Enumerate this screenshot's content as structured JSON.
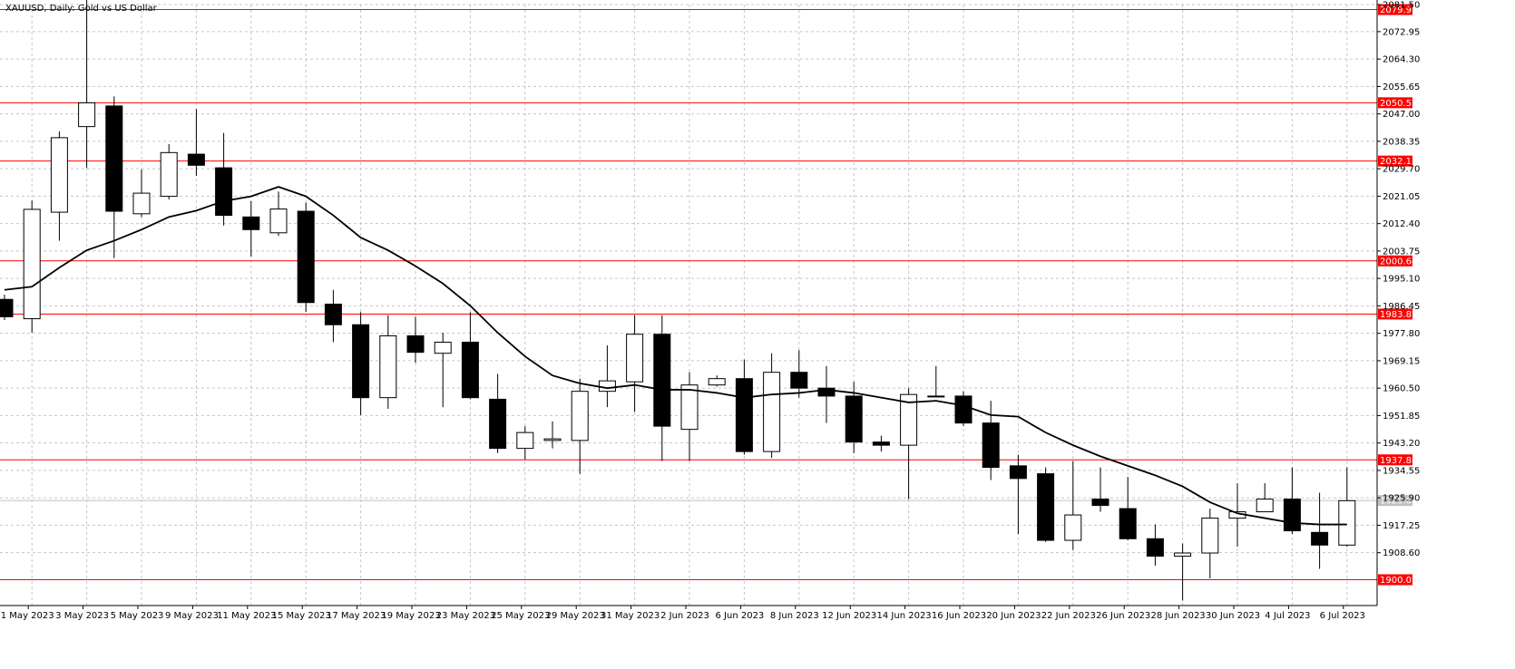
{
  "chart_data": {
    "type": "candlestick",
    "title": "XAUUSD, Daily:  Gold vs US Dollar",
    "symbol": "XAUUSD",
    "timeframe": "Daily",
    "description": "Gold vs US Dollar",
    "ylim": [
      1896.5,
      2081.5
    ],
    "grid": true,
    "colors": {
      "bull_body": "#ffffff",
      "bear_body": "#000000",
      "candle_outline": "#000000",
      "moving_average": "#000000",
      "level_line": "#ff0000",
      "level_label_bg": "#ff0000",
      "level_label_text": "#ffffff",
      "current_price_bg": "#c0c0c0",
      "grid": "#c0c8d0",
      "axis_text": "#000000"
    },
    "y_ticks": [
      "2081.50",
      "2072.95",
      "2064.30",
      "2055.65",
      "2047.00",
      "2038.35",
      "2029.70",
      "2021.05",
      "2012.40",
      "2003.75",
      "1995.10",
      "1986.45",
      "1977.80",
      "1969.15",
      "1960.50",
      "1951.85",
      "1943.20",
      "1934.55",
      "1925.90",
      "1917.25",
      "1908.60"
    ],
    "x_ticks": [
      "1 May 2023",
      "3 May 2023",
      "5 May 2023",
      "9 May 2023",
      "11 May 2023",
      "15 May 2023",
      "17 May 2023",
      "19 May 2023",
      "23 May 2023",
      "25 May 2023",
      "29 May 2023",
      "31 May 2023",
      "2 Jun 2023",
      "6 Jun 2023",
      "8 Jun 2023",
      "12 Jun 2023",
      "14 Jun 2023",
      "16 Jun 2023",
      "20 Jun 2023",
      "22 Jun 2023",
      "26 Jun 2023",
      "28 Jun 2023",
      "30 Jun 2023",
      "4 Jul 2023",
      "6 Jul 2023"
    ],
    "levels": [
      {
        "label": "2079.91",
        "value": 2079.91
      },
      {
        "label": "2050.52",
        "value": 2050.52
      },
      {
        "label": "2032.13",
        "value": 2032.13
      },
      {
        "label": "2000.64",
        "value": 2000.64
      },
      {
        "label": "1983.87",
        "value": 1983.87
      },
      {
        "label": "1937.88",
        "value": 1937.88
      },
      {
        "label": "1900.07",
        "value": 1900.07
      }
    ],
    "current_price": {
      "label": "1925.06",
      "value": 1925.06
    },
    "candles": [
      {
        "date": "28 Apr 2023",
        "open": 1988.5,
        "high": 1990.0,
        "low": 1982.0,
        "close": 1983.0
      },
      {
        "date": "1 May 2023",
        "open": 1982.4,
        "high": 2019.7,
        "low": 1978.0,
        "close": 2016.9
      },
      {
        "date": "2 May 2023",
        "open": 2016.0,
        "high": 2041.5,
        "low": 2007.0,
        "close": 2039.5
      },
      {
        "date": "3 May 2023",
        "open": 2043.0,
        "high": 2093.0,
        "low": 2030.0,
        "close": 2050.5
      },
      {
        "date": "4 May 2023",
        "open": 2049.5,
        "high": 2052.5,
        "low": 2001.5,
        "close": 2016.3
      },
      {
        "date": "5 May 2023",
        "open": 2015.5,
        "high": 2029.5,
        "low": 2014.5,
        "close": 2022.0
      },
      {
        "date": "8 May 2023",
        "open": 2021.0,
        "high": 2037.5,
        "low": 2020.0,
        "close": 2034.8
      },
      {
        "date": "9 May 2023",
        "open": 2034.3,
        "high": 2048.5,
        "low": 2027.5,
        "close": 2030.8
      },
      {
        "date": "10 May 2023",
        "open": 2030.0,
        "high": 2041.0,
        "low": 2011.8,
        "close": 2015.0
      },
      {
        "date": "11 May 2023",
        "open": 2014.5,
        "high": 2019.5,
        "low": 2002.0,
        "close": 2010.5
      },
      {
        "date": "12 May 2023",
        "open": 2009.5,
        "high": 2022.5,
        "low": 2008.5,
        "close": 2017.0
      },
      {
        "date": "15 May 2023",
        "open": 2016.3,
        "high": 2019.0,
        "low": 1984.5,
        "close": 1987.5
      },
      {
        "date": "16 May 2023",
        "open": 1987.0,
        "high": 1991.5,
        "low": 1975.0,
        "close": 1980.5
      },
      {
        "date": "17 May 2023",
        "open": 1980.5,
        "high": 1984.5,
        "low": 1952.0,
        "close": 1957.5
      },
      {
        "date": "18 May 2023",
        "open": 1957.5,
        "high": 1983.5,
        "low": 1954.0,
        "close": 1977.0
      },
      {
        "date": "19 May 2023",
        "open": 1977.0,
        "high": 1983.0,
        "low": 1968.5,
        "close": 1971.8
      },
      {
        "date": "22 May 2023",
        "open": 1971.5,
        "high": 1978.0,
        "low": 1954.5,
        "close": 1975.0
      },
      {
        "date": "23 May 2023",
        "open": 1975.0,
        "high": 1984.5,
        "low": 1957.0,
        "close": 1957.5
      },
      {
        "date": "24 May 2023",
        "open": 1957.0,
        "high": 1965.0,
        "low": 1940.0,
        "close": 1941.5
      },
      {
        "date": "25 May 2023",
        "open": 1941.5,
        "high": 1948.5,
        "low": 1938.0,
        "close": 1946.5
      },
      {
        "date": "26 May 2023",
        "open": 1944.0,
        "high": 1950.0,
        "low": 1941.5,
        "close": 1944.5
      },
      {
        "date": "29 May 2023",
        "open": 1944.0,
        "high": 1963.5,
        "low": 1933.5,
        "close": 1959.5
      },
      {
        "date": "30 May 2023",
        "open": 1959.5,
        "high": 1974.0,
        "low": 1954.5,
        "close": 1962.8
      },
      {
        "date": "31 May 2023",
        "open": 1962.5,
        "high": 1983.5,
        "low": 1953.0,
        "close": 1977.5
      },
      {
        "date": "1 Jun 2023",
        "open": 1977.5,
        "high": 1983.5,
        "low": 1937.5,
        "close": 1948.5
      },
      {
        "date": "2 Jun 2023",
        "open": 1947.5,
        "high": 1965.5,
        "low": 1937.5,
        "close": 1961.5
      },
      {
        "date": "5 Jun 2023",
        "open": 1961.5,
        "high": 1964.5,
        "low": 1961.0,
        "close": 1963.5
      },
      {
        "date": "6 Jun 2023",
        "open": 1963.5,
        "high": 1969.5,
        "low": 1939.5,
        "close": 1940.5
      },
      {
        "date": "7 Jun 2023",
        "open": 1940.5,
        "high": 1971.5,
        "low": 1938.5,
        "close": 1965.5
      },
      {
        "date": "8 Jun 2023",
        "open": 1965.5,
        "high": 1972.5,
        "low": 1957.5,
        "close": 1960.5
      },
      {
        "date": "9 Jun 2023",
        "open": 1960.5,
        "high": 1967.5,
        "low": 1949.5,
        "close": 1958.0
      },
      {
        "date": "12 Jun 2023",
        "open": 1958.0,
        "high": 1962.5,
        "low": 1940.0,
        "close": 1943.5
      },
      {
        "date": "13 Jun 2023",
        "open": 1943.5,
        "high": 1945.5,
        "low": 1940.5,
        "close": 1942.5
      },
      {
        "date": "14 Jun 2023",
        "open": 1942.5,
        "high": 1960.5,
        "low": 1925.5,
        "close": 1958.5
      },
      {
        "date": "15 Jun 2023",
        "open": 1958.0,
        "high": 1967.5,
        "low": 1958.0,
        "close": 1958.0
      },
      {
        "date": "16 Jun 2023",
        "open": 1958.0,
        "high": 1959.5,
        "low": 1948.5,
        "close": 1949.5
      },
      {
        "date": "19 Jun 2023",
        "open": 1949.5,
        "high": 1956.5,
        "low": 1931.5,
        "close": 1935.5
      },
      {
        "date": "20 Jun 2023",
        "open": 1936.0,
        "high": 1939.5,
        "low": 1914.5,
        "close": 1932.0
      },
      {
        "date": "21 Jun 2023",
        "open": 1933.5,
        "high": 1935.5,
        "low": 1912.0,
        "close": 1912.5
      },
      {
        "date": "22 Jun 2023",
        "open": 1912.5,
        "high": 1937.5,
        "low": 1909.5,
        "close": 1920.5
      },
      {
        "date": "23 Jun 2023",
        "open": 1925.5,
        "high": 1935.5,
        "low": 1921.5,
        "close": 1923.5
      },
      {
        "date": "26 Jun 2023",
        "open": 1922.5,
        "high": 1932.5,
        "low": 1912.5,
        "close": 1913.0
      },
      {
        "date": "27 Jun 2023",
        "open": 1913.0,
        "high": 1917.5,
        "low": 1904.5,
        "close": 1907.5
      },
      {
        "date": "28 Jun 2023",
        "open": 1907.5,
        "high": 1911.5,
        "low": 1893.5,
        "close": 1908.5
      },
      {
        "date": "29 Jun 2023",
        "open": 1908.5,
        "high": 1922.5,
        "low": 1900.5,
        "close": 1919.5
      },
      {
        "date": "30 Jun 2023",
        "open": 1919.5,
        "high": 1930.5,
        "low": 1910.5,
        "close": 1921.5
      },
      {
        "date": "3 Jul 2023",
        "open": 1921.5,
        "high": 1930.5,
        "low": 1921.5,
        "close": 1925.5
      },
      {
        "date": "4 Jul 2023",
        "open": 1925.5,
        "high": 1935.5,
        "low": 1914.5,
        "close": 1915.5
      },
      {
        "date": "5 Jul 2023",
        "open": 1915.0,
        "high": 1927.5,
        "low": 1903.5,
        "close": 1911.0
      },
      {
        "date": "6 Jul 2023",
        "open": 1911.0,
        "high": 1935.5,
        "low": 1910.5,
        "close": 1925.0
      }
    ],
    "moving_average": [
      1991.5,
      1992.5,
      1998.5,
      2004.0,
      2007.0,
      2010.5,
      2014.5,
      2016.5,
      2019.5,
      2021.0,
      2024.0,
      2021.0,
      2015.0,
      2008.0,
      2004.0,
      1999.0,
      1993.5,
      1986.5,
      1978.0,
      1970.5,
      1964.5,
      1962.0,
      1960.5,
      1961.5,
      1960.0,
      1960.0,
      1959.0,
      1957.5,
      1958.5,
      1959.0,
      1960.0,
      1959.0,
      1957.5,
      1956.0,
      1956.5,
      1955.0,
      1952.0,
      1951.5,
      1946.5,
      1942.5,
      1939.0,
      1936.0,
      1933.0,
      1929.5,
      1924.5,
      1921.0,
      1919.5,
      1918.0,
      1917.5,
      1917.5
    ]
  }
}
